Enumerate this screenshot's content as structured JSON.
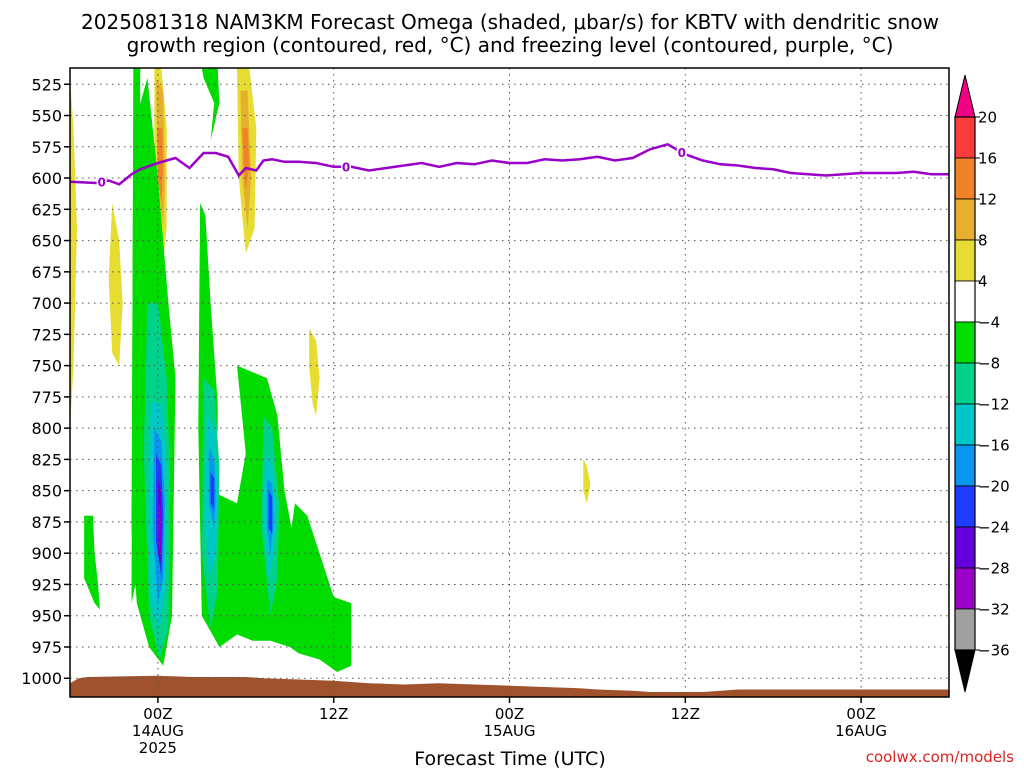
{
  "chart_data": {
    "type": "heatmap",
    "title_line1": "2025081318 NAM3KM Forecast Omega (shaded, μbar/s) for KBTV with dendritic snow",
    "title_line2": "growth region (contoured, red, °C) and freezing level (contoured, purple, °C)",
    "xlabel": "Forecast Time (UTC)",
    "ylabel": "",
    "credit": "coolwx.com/models",
    "y_axis": {
      "type": "pressure_hPa",
      "inverted": true,
      "ylim": [
        1015,
        512
      ],
      "ticks": [
        525,
        550,
        575,
        600,
        625,
        650,
        675,
        700,
        725,
        750,
        775,
        800,
        825,
        850,
        875,
        900,
        925,
        950,
        975,
        1000
      ]
    },
    "x_axis": {
      "unit": "forecast_hour",
      "xlim": [
        -5,
        45
      ],
      "ticks": [
        {
          "hour": 0,
          "line1": "00Z",
          "line2": "14AUG",
          "line3": "2025"
        },
        {
          "hour": 10,
          "line1": "12Z",
          "line2": "",
          "line3": ""
        },
        {
          "hour": 20,
          "line1": "00Z",
          "line2": "15AUG",
          "line3": ""
        },
        {
          "hour": 30,
          "line1": "12Z",
          "line2": "",
          "line3": ""
        },
        {
          "hour": 40,
          "line1": "00Z",
          "line2": "16AUG",
          "line3": ""
        }
      ]
    },
    "grid": true,
    "colorbar": {
      "bins": [
        {
          "lo": -40,
          "hi": -36,
          "color": "#000000"
        },
        {
          "lo": -36,
          "hi": -32,
          "color": "#a0a0a0"
        },
        {
          "lo": -32,
          "hi": -28,
          "color": "#9a00c8"
        },
        {
          "lo": -28,
          "hi": -24,
          "color": "#6400e0"
        },
        {
          "lo": -24,
          "hi": -20,
          "color": "#1e3cff"
        },
        {
          "lo": -20,
          "hi": -16,
          "color": "#0a96f0"
        },
        {
          "lo": -16,
          "hi": -12,
          "color": "#00c8c8"
        },
        {
          "lo": -12,
          "hi": -8,
          "color": "#00d28c"
        },
        {
          "lo": -8,
          "hi": -4,
          "color": "#00dc00"
        },
        {
          "lo": -4,
          "hi": 4,
          "color": "#ffffff"
        },
        {
          "lo": 4,
          "hi": 8,
          "color": "#e6dc32"
        },
        {
          "lo": 8,
          "hi": 12,
          "color": "#e6af2d"
        },
        {
          "lo": 12,
          "hi": 16,
          "color": "#f08228"
        },
        {
          "lo": 16,
          "hi": 20,
          "color": "#fa3c3c"
        },
        {
          "lo": 20,
          "hi": 24,
          "color": "#f00082"
        }
      ],
      "labels": [
        20,
        16,
        12,
        8,
        4,
        -4,
        -8,
        -12,
        -16,
        -20,
        -24,
        -28,
        -32,
        -36
      ]
    },
    "freezing_level": {
      "name": "0",
      "color": "#9a00c8",
      "x": [
        -5,
        -3.5,
        -2.8,
        -2.2,
        -1.5,
        -1,
        0,
        0.5,
        1,
        1.8,
        2.6,
        3.3,
        4,
        4.6,
        5,
        5.6,
        6,
        6.5,
        7.2,
        8,
        9,
        10,
        11,
        12,
        13,
        14,
        15,
        16,
        17,
        18,
        19,
        20,
        21,
        22,
        23,
        24,
        25,
        26,
        27,
        28,
        29,
        30,
        31,
        32,
        33,
        34,
        35,
        36,
        37,
        38,
        39,
        40,
        41,
        42,
        43,
        44,
        45
      ],
      "y": [
        603,
        604,
        602,
        605,
        597,
        593,
        588,
        586,
        584,
        592,
        580,
        580,
        583,
        598,
        592,
        594,
        586,
        585,
        587,
        587,
        588,
        591,
        591,
        594,
        592,
        590,
        588,
        591,
        588,
        589,
        586,
        588,
        588,
        585,
        586,
        585,
        583,
        586,
        584,
        577,
        573,
        581,
        586,
        589,
        590,
        592,
        593,
        596,
        597,
        598,
        597,
        596,
        596,
        596,
        595,
        597,
        597
      ],
      "labels_at_hours": [
        -3.2,
        10.7,
        29.8
      ]
    },
    "omega_regions": [
      {
        "bin": "4_8",
        "x": [
          -5,
          -4.8,
          -4.6,
          -4.8,
          -5
        ],
        "y": [
          520,
          560,
          640,
          750,
          800
        ]
      },
      {
        "bin": "4_8",
        "x": [
          -2.6,
          -2.2,
          -2.0,
          -2.2,
          -2.6,
          -2.8
        ],
        "y": [
          620,
          650,
          700,
          750,
          740,
          680
        ]
      },
      {
        "bin": "4_8",
        "x": [
          8.6,
          9.0,
          9.2,
          9.0,
          8.8,
          8.6
        ],
        "y": [
          720,
          730,
          760,
          790,
          780,
          750
        ]
      },
      {
        "bin": "4_8",
        "x": [
          24.2,
          24.4,
          24.6,
          24.4,
          24.2
        ],
        "y": [
          825,
          830,
          845,
          860,
          850
        ]
      },
      {
        "bin": "4_8",
        "x": [
          -0.2,
          0.2,
          0.5,
          0.5,
          0.2,
          -0.2
        ],
        "y": [
          512,
          512,
          560,
          640,
          680,
          620
        ]
      },
      {
        "bin": "4_8",
        "x": [
          4.5,
          5.2,
          5.6,
          5.5,
          5.0,
          4.6
        ],
        "y": [
          512,
          512,
          560,
          640,
          660,
          600
        ]
      },
      {
        "bin": "8_12",
        "x": [
          -0.1,
          0.3,
          0.4,
          0.3,
          0.0
        ],
        "y": [
          520,
          530,
          600,
          640,
          600
        ]
      },
      {
        "bin": "8_12",
        "x": [
          4.7,
          5.1,
          5.3,
          5.1,
          4.8
        ],
        "y": [
          530,
          530,
          600,
          640,
          600
        ]
      },
      {
        "bin": "12_16",
        "x": [
          -0.05,
          0.25,
          0.3,
          0.2,
          0.0
        ],
        "y": [
          560,
          560,
          590,
          620,
          600
        ]
      },
      {
        "bin": "12_16",
        "x": [
          4.8,
          5.1,
          5.2,
          5.0,
          4.9
        ],
        "y": [
          560,
          560,
          590,
          610,
          590
        ]
      },
      {
        "bin": "n4_n8",
        "x": [
          -1.4,
          -1.0,
          -1.1,
          -1.3,
          -1.2,
          -1.5
        ],
        "y": [
          512,
          512,
          700,
          780,
          920,
          940
        ]
      },
      {
        "bin": "n4_n8",
        "x": [
          2.5,
          3.4,
          3.5,
          3.0,
          3.2,
          2.6
        ],
        "y": [
          512,
          512,
          540,
          570,
          540,
          520
        ]
      },
      {
        "bin": "n4_n8",
        "x": [
          2.4,
          2.7,
          3.0,
          3.4,
          3.4,
          3.0,
          4.5,
          5.0,
          4.5,
          6.2,
          6.8,
          7.2,
          7.6,
          7.8,
          8.5,
          10,
          11,
          11,
          10.2,
          9.2,
          8.0,
          7.5,
          6.4,
          5.4,
          4.5,
          3.5,
          2.5,
          2.3
        ],
        "y": [
          620,
          630,
          700,
          780,
          800,
          850,
          860,
          820,
          750,
          760,
          790,
          850,
          880,
          860,
          870,
          935,
          940,
          990,
          995,
          985,
          980,
          975,
          970,
          970,
          965,
          975,
          950,
          800
        ]
      },
      {
        "bin": "n4_n8",
        "x": [
          -4.2,
          -3.7,
          -3.6,
          -3.4,
          -3.3,
          -3.6,
          -4.2
        ],
        "y": [
          870,
          870,
          900,
          925,
          945,
          940,
          920
        ]
      },
      {
        "bin": "n4_n8",
        "x": [
          -1.4,
          -0.6,
          0.0,
          0.6,
          1.0,
          0.8,
          0.3,
          -0.5,
          -1.2,
          -1.5
        ],
        "y": [
          560,
          520,
          600,
          700,
          760,
          950,
          990,
          975,
          940,
          880
        ]
      },
      {
        "bin": "n8_n12",
        "x": [
          -0.6,
          0.0,
          0.5,
          0.7,
          0.6,
          0.1,
          -0.5,
          -0.8
        ],
        "y": [
          700,
          700,
          760,
          840,
          960,
          985,
          950,
          820
        ]
      },
      {
        "bin": "n8_n12",
        "x": [
          2.6,
          3.2,
          3.5,
          3.4,
          3.0,
          2.5
        ],
        "y": [
          760,
          770,
          830,
          930,
          960,
          900
        ]
      },
      {
        "bin": "n8_n12",
        "x": [
          6.0,
          6.5,
          6.9,
          6.8,
          6.4,
          5.9
        ],
        "y": [
          790,
          800,
          860,
          920,
          950,
          880
        ]
      },
      {
        "bin": "n12_n16",
        "x": [
          -0.4,
          0.2,
          0.5,
          0.4,
          0.1,
          -0.4,
          -0.5
        ],
        "y": [
          780,
          780,
          830,
          930,
          960,
          940,
          860
        ]
      },
      {
        "bin": "n12_n16",
        "x": [
          2.8,
          3.2,
          3.4,
          3.3,
          2.9,
          2.7
        ],
        "y": [
          790,
          800,
          850,
          900,
          920,
          870
        ]
      },
      {
        "bin": "n12_n16",
        "x": [
          6.1,
          6.5,
          6.7,
          6.6,
          6.3,
          6.0
        ],
        "y": [
          820,
          830,
          870,
          900,
          920,
          870
        ]
      },
      {
        "bin": "n16_n20",
        "x": [
          -0.2,
          0.2,
          0.4,
          0.3,
          0.0,
          -0.3
        ],
        "y": [
          800,
          810,
          860,
          920,
          940,
          880
        ]
      },
      {
        "bin": "n16_n20",
        "x": [
          2.9,
          3.2,
          3.3,
          3.2,
          2.9
        ],
        "y": [
          815,
          825,
          855,
          880,
          860
        ]
      },
      {
        "bin": "n16_n20",
        "x": [
          6.2,
          6.5,
          6.6,
          6.4,
          6.2
        ],
        "y": [
          840,
          845,
          875,
          900,
          880
        ]
      },
      {
        "bin": "n20_n24",
        "x": [
          -0.1,
          0.2,
          0.3,
          0.2,
          -0.1
        ],
        "y": [
          820,
          830,
          870,
          920,
          890
        ]
      },
      {
        "bin": "n20_n24",
        "x": [
          3.0,
          3.2,
          3.2,
          3.0
        ],
        "y": [
          835,
          840,
          865,
          860
        ]
      },
      {
        "bin": "n20_n24",
        "x": [
          6.3,
          6.5,
          6.5,
          6.3
        ],
        "y": [
          850,
          855,
          885,
          880
        ]
      },
      {
        "bin": "n24_n28",
        "x": [
          0.0,
          0.2,
          0.2,
          0.0
        ],
        "y": [
          840,
          850,
          910,
          900
        ]
      },
      {
        "bin": "n28_n32",
        "x": [
          0.05,
          0.15,
          0.15,
          0.05
        ],
        "y": [
          860,
          865,
          900,
          895
        ]
      }
    ],
    "terrain": {
      "color": "#a0522d",
      "x": [
        -5,
        -4.5,
        -4,
        0,
        2,
        5,
        6,
        8,
        10,
        12,
        14,
        16,
        18,
        20,
        22,
        24,
        25,
        27,
        28,
        30,
        31,
        32,
        33,
        45
      ],
      "p": [
        1004,
        1000,
        999,
        998,
        999,
        999,
        1000,
        1001,
        1002,
        1004,
        1005,
        1004,
        1005,
        1006,
        1007,
        1008,
        1009,
        1010,
        1011,
        1011,
        1011,
        1010,
        1009,
        1009
      ]
    }
  }
}
